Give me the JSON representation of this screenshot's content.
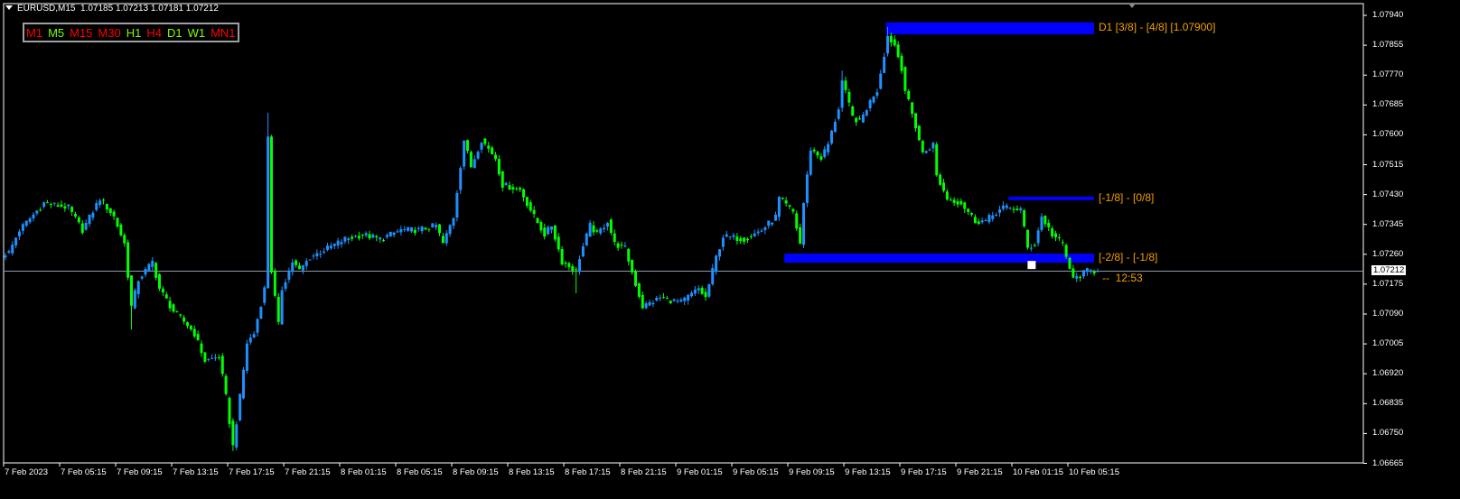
{
  "header": {
    "symbol": "EURUSD,M15",
    "ohlc_text": "1.07185 1.07213 1.07181 1.07212"
  },
  "timeframes": [
    {
      "label": "M1",
      "color": "#ff0000"
    },
    {
      "label": "M5",
      "color": "#7cfc00"
    },
    {
      "label": "M15",
      "color": "#ff0000"
    },
    {
      "label": "M30",
      "color": "#ff0000"
    },
    {
      "label": "H1",
      "color": "#7cfc00"
    },
    {
      "label": "H4",
      "color": "#ff0000"
    },
    {
      "label": "D1",
      "color": "#7cfc00"
    },
    {
      "label": "W1",
      "color": "#7cfc00"
    },
    {
      "label": "MN1",
      "color": "#ff0000"
    }
  ],
  "countdown": "--  12:53",
  "chart_data": {
    "type": "candlestick",
    "timeframe": "M15",
    "first_bar": "2023-02-07 01:15",
    "colors": {
      "up": "#1e90ff",
      "down": "#00ff00",
      "level": "#0000ff",
      "level_label": "#f0a000",
      "current_price_line": "#8c9aa8",
      "grid_axis": "#ffffff"
    },
    "ylim": [
      1.06665,
      1.0794
    ],
    "y_ticks": [
      "1.07940",
      "1.07855",
      "1.07770",
      "1.07685",
      "1.07600",
      "1.07515",
      "1.07430",
      "1.07345",
      "1.07260",
      "1.07175",
      "1.07090",
      "1.07005",
      "1.06920",
      "1.06835",
      "1.06750",
      "1.06665"
    ],
    "x_ticks": [
      "7 Feb 2023",
      "7 Feb 05:15",
      "7 Feb 09:15",
      "7 Feb 13:15",
      "7 Feb 17:15",
      "7 Feb 21:15",
      "8 Feb 01:15",
      "8 Feb 05:15",
      "8 Feb 09:15",
      "8 Feb 13:15",
      "8 Feb 17:15",
      "8 Feb 21:15",
      "9 Feb 01:15",
      "9 Feb 05:15",
      "9 Feb 09:15",
      "9 Feb 13:15",
      "9 Feb 17:15",
      "9 Feb 21:15",
      "10 Feb 01:15",
      "10 Feb 05:15"
    ],
    "current_price": "1.07212",
    "close_path": [
      [
        "2023-02-07 01:15",
        1.07262
      ],
      [
        "2023-02-07 01:30",
        1.07265
      ],
      [
        "2023-02-07 02:15",
        1.07329
      ],
      [
        "2023-02-07 04:00",
        1.07406
      ],
      [
        "2023-02-07 05:45",
        1.07393
      ],
      [
        "2023-02-07 06:45",
        1.07329
      ],
      [
        "2023-02-07 08:00",
        1.07419
      ],
      [
        "2023-02-07 09:00",
        1.07367
      ],
      [
        "2023-02-07 09:45",
        1.0729
      ],
      [
        "2023-02-07 10:15",
        1.07111
      ],
      [
        "2023-02-07 10:45",
        1.07188
      ],
      [
        "2023-02-07 11:45",
        1.07239
      ],
      [
        "2023-02-07 12:15",
        1.07162
      ],
      [
        "2023-02-07 13:15",
        1.07098
      ],
      [
        "2023-02-07 14:15",
        1.07059
      ],
      [
        "2023-02-07 14:45",
        1.07034
      ],
      [
        "2023-02-07 15:30",
        1.06957
      ],
      [
        "2023-02-07 16:30",
        1.06969
      ],
      [
        "2023-02-07 17:00",
        1.06854
      ],
      [
        "2023-02-07 17:30",
        1.06713
      ],
      [
        "2023-02-07 18:00",
        1.06854
      ],
      [
        "2023-02-07 18:30",
        1.07008
      ],
      [
        "2023-02-07 19:00",
        1.07034
      ],
      [
        "2023-02-07 19:45",
        1.07162
      ],
      [
        "2023-02-07 20:00",
        1.07598
      ],
      [
        "2023-02-07 20:15",
        1.07213
      ],
      [
        "2023-02-07 20:45",
        1.07059
      ],
      [
        "2023-02-07 21:00",
        1.07162
      ],
      [
        "2023-02-07 21:45",
        1.07239
      ],
      [
        "2023-02-07 22:15",
        1.07213
      ],
      [
        "2023-02-07 23:00",
        1.07252
      ],
      [
        "2023-02-08 00:15",
        1.07277
      ],
      [
        "2023-02-08 01:30",
        1.07303
      ],
      [
        "2023-02-08 02:45",
        1.07316
      ],
      [
        "2023-02-08 04:00",
        1.07303
      ],
      [
        "2023-02-08 05:30",
        1.07329
      ],
      [
        "2023-02-08 06:45",
        1.07329
      ],
      [
        "2023-02-08 08:00",
        1.07342
      ],
      [
        "2023-02-08 08:30",
        1.0729
      ],
      [
        "2023-02-08 09:15",
        1.07367
      ],
      [
        "2023-02-08 10:00",
        1.07586
      ],
      [
        "2023-02-08 10:30",
        1.07509
      ],
      [
        "2023-02-08 11:15",
        1.07586
      ],
      [
        "2023-02-08 12:15",
        1.07534
      ],
      [
        "2023-02-08 12:45",
        1.07457
      ],
      [
        "2023-02-08 14:00",
        1.07444
      ],
      [
        "2023-02-08 15:00",
        1.07367
      ],
      [
        "2023-02-08 15:45",
        1.07316
      ],
      [
        "2023-02-08 16:15",
        1.07342
      ],
      [
        "2023-02-08 17:00",
        1.07239
      ],
      [
        "2023-02-08 18:00",
        1.07213
      ],
      [
        "2023-02-08 18:15",
        1.07252
      ],
      [
        "2023-02-08 19:00",
        1.07342
      ],
      [
        "2023-02-08 19:30",
        1.07316
      ],
      [
        "2023-02-08 20:15",
        1.07355
      ],
      [
        "2023-02-08 20:45",
        1.0729
      ],
      [
        "2023-02-08 21:30",
        1.07277
      ],
      [
        "2023-02-08 22:15",
        1.07175
      ],
      [
        "2023-02-08 22:45",
        1.07111
      ],
      [
        "2023-02-09 00:00",
        1.07136
      ],
      [
        "2023-02-09 01:30",
        1.07123
      ],
      [
        "2023-02-09 02:45",
        1.07162
      ],
      [
        "2023-02-09 03:15",
        1.07136
      ],
      [
        "2023-02-09 04:00",
        1.07252
      ],
      [
        "2023-02-09 04:30",
        1.07311
      ],
      [
        "2023-02-09 06:00",
        1.07303
      ],
      [
        "2023-02-09 07:15",
        1.07329
      ],
      [
        "2023-02-09 08:15",
        1.07367
      ],
      [
        "2023-02-09 08:30",
        1.07419
      ],
      [
        "2023-02-09 09:30",
        1.0738
      ],
      [
        "2023-02-09 10:00",
        1.0729
      ],
      [
        "2023-02-09 10:15",
        1.07406
      ],
      [
        "2023-02-09 10:45",
        1.0756
      ],
      [
        "2023-02-09 11:30",
        1.07534
      ],
      [
        "2023-02-09 12:00",
        1.07573
      ],
      [
        "2023-02-09 12:45",
        1.07676
      ],
      [
        "2023-02-09 13:00",
        1.07753
      ],
      [
        "2023-02-09 13:45",
        1.0765
      ],
      [
        "2023-02-09 14:15",
        1.07637
      ],
      [
        "2023-02-09 15:15",
        1.07714
      ],
      [
        "2023-02-09 15:30",
        1.07727
      ],
      [
        "2023-02-09 16:00",
        1.0783
      ],
      [
        "2023-02-09 16:15",
        1.07881
      ],
      [
        "2023-02-09 16:45",
        1.07855
      ],
      [
        "2023-02-09 17:15",
        1.07791
      ],
      [
        "2023-02-09 17:30",
        1.07727
      ],
      [
        "2023-02-09 18:15",
        1.07624
      ],
      [
        "2023-02-09 18:45",
        1.07547
      ],
      [
        "2023-02-09 19:30",
        1.07573
      ],
      [
        "2023-02-09 19:45",
        1.07483
      ],
      [
        "2023-02-09 20:30",
        1.07419
      ],
      [
        "2023-02-09 21:30",
        1.07406
      ],
      [
        "2023-02-09 22:30",
        1.07355
      ],
      [
        "2023-02-09 23:15",
        1.07355
      ],
      [
        "2023-02-10 00:00",
        1.0738
      ],
      [
        "2023-02-10 00:30",
        1.07393
      ],
      [
        "2023-02-10 01:45",
        1.07388
      ],
      [
        "2023-02-10 02:15",
        1.07277
      ],
      [
        "2023-02-10 02:45",
        1.0729
      ],
      [
        "2023-02-10 03:15",
        1.07367
      ],
      [
        "2023-02-10 04:00",
        1.07316
      ],
      [
        "2023-02-10 04:45",
        1.0729
      ],
      [
        "2023-02-10 05:00",
        1.07252
      ],
      [
        "2023-02-10 05:30",
        1.07188
      ],
      [
        "2023-02-10 06:30",
        1.07213
      ],
      [
        "2023-02-10 07:15",
        1.07212
      ]
    ],
    "wick_extremes": [
      {
        "time": "2023-02-07 20:00",
        "high": 1.07663
      },
      {
        "time": "2023-02-07 17:30",
        "low": 1.067
      },
      {
        "time": "2023-02-07 10:15",
        "low": 1.07046
      },
      {
        "time": "2023-02-08 18:00",
        "low": 1.07149
      },
      {
        "time": "2023-02-09 13:00",
        "high": 1.07783
      },
      {
        "time": "2023-02-09 16:15",
        "high": 1.07907
      }
    ],
    "levels": [
      {
        "label": "D1 [3/8] - [4/8] [1.07900]",
        "from": "2023-02-09 16:15",
        "top": 1.0792,
        "bottom": 1.07886
      },
      {
        "label": "[-1/8] - [0/8]",
        "from": "2023-02-10 01:00",
        "top": 1.07424,
        "bottom": 1.07414
      },
      {
        "label": "[-2/8] - [-1/8]",
        "from": "2023-02-09 09:00",
        "top": 1.07262,
        "bottom": 1.07236
      }
    ],
    "marker": {
      "time": "2023-02-10 02:30",
      "price": 1.07236
    }
  }
}
